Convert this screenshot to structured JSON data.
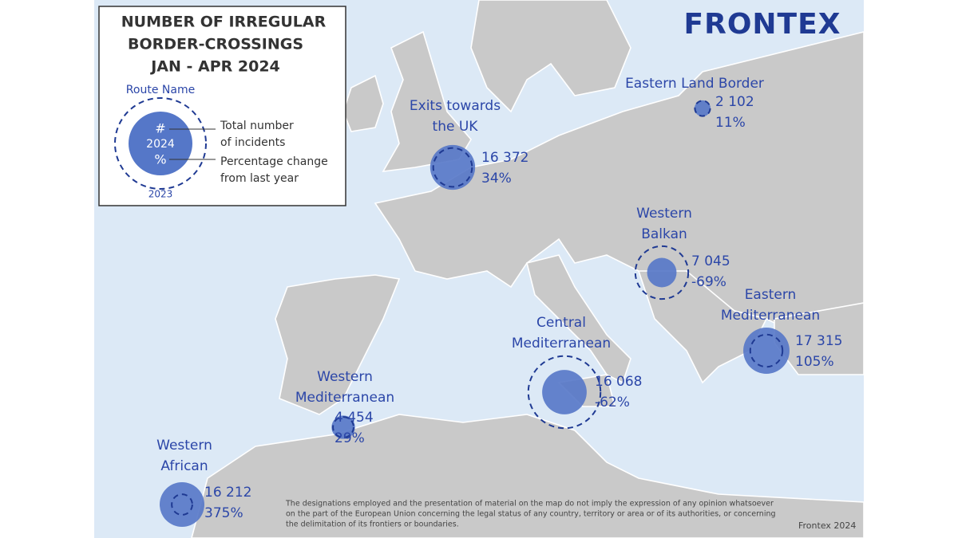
{
  "legend": {
    "title_lines": [
      "NUMBER OF IRREGULAR",
      "BORDER-CROSSINGS",
      "JAN - APR 2024"
    ],
    "route_name": "Route Name",
    "symbol_lines": [
      "#",
      "2024",
      "%"
    ],
    "total_lines": [
      "Total number",
      "of incidents"
    ],
    "change_lines": [
      "Percentage change",
      "from last year"
    ],
    "previous": "2023"
  },
  "logo": "FRONTEX",
  "routes": [
    {
      "name_lines": [
        "Exits towards",
        "the UK"
      ],
      "count": 16372,
      "count_label": "16 372",
      "change": 34,
      "change_label": "34%"
    },
    {
      "name_lines": [
        "Eastern Land Border"
      ],
      "count": 2102,
      "count_label": "2 102",
      "change": 11,
      "change_label": "11%"
    },
    {
      "name_lines": [
        "Western",
        "Balkan"
      ],
      "count": 7045,
      "count_label": "7 045",
      "change": -69,
      "change_label": "-69%"
    },
    {
      "name_lines": [
        "Eastern",
        "Mediterranean"
      ],
      "count": 17315,
      "count_label": "17 315",
      "change": 105,
      "change_label": "105%"
    },
    {
      "name_lines": [
        "Central",
        "Mediterranean"
      ],
      "count": 16068,
      "count_label": "16 068",
      "change": -62,
      "change_label": "-62%"
    },
    {
      "name_lines": [
        "Western",
        "Mediterranean"
      ],
      "count": 4454,
      "count_label": "4 454",
      "change": 29,
      "change_label": "29%"
    },
    {
      "name_lines": [
        "Western",
        "African"
      ],
      "count": 16212,
      "count_label": "16 212",
      "change": 375,
      "change_label": "375%"
    }
  ],
  "disclaimer_lines": [
    "The designations employed and the presentation of material on the map do not imply the expression of any opinion whatsoever",
    "on the part of the European Union concerning the legal status of any country, territory or area or of its authorities, or concerning",
    "the delimitation of its frontiers or boundaries."
  ],
  "credit": "Frontex 2024"
}
